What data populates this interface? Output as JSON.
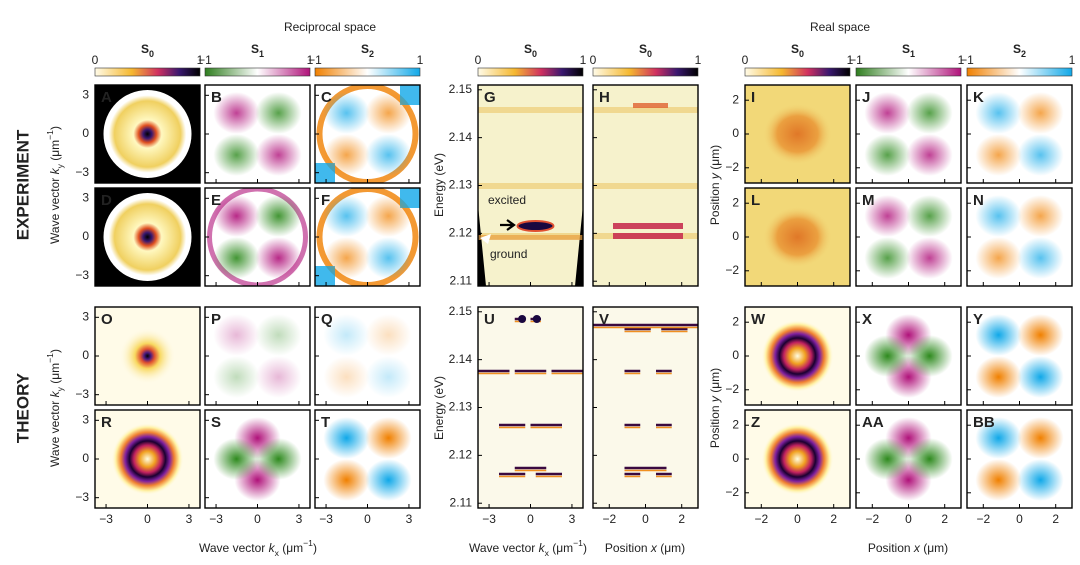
{
  "headers": {
    "reciprocal": "Reciprocal space",
    "real": "Real space"
  },
  "row_labels": {
    "experiment": "EXPERIMENT",
    "theory": "THEORY"
  },
  "colorbars": [
    {
      "var": "S",
      "sub": "0",
      "ticks": [
        0,
        1
      ]
    },
    {
      "var": "S",
      "sub": "1",
      "ticks": [
        {
          "value": -1,
          "label": "−1"
        },
        1
      ]
    },
    {
      "var": "S",
      "sub": "2",
      "ticks": [
        {
          "value": -1,
          "label": "−1"
        },
        1
      ]
    },
    {
      "var": "S",
      "sub": "0",
      "ticks": [
        0,
        1
      ]
    },
    {
      "var": "S",
      "sub": "0",
      "ticks": [
        0,
        1
      ]
    },
    {
      "var": "S",
      "sub": "0",
      "ticks": [
        0,
        1
      ]
    },
    {
      "var": "S",
      "sub": "1",
      "ticks": [
        {
          "value": -1,
          "label": "−1"
        },
        1
      ]
    },
    {
      "var": "S",
      "sub": "2",
      "ticks": [
        {
          "value": -1,
          "label": "−1"
        },
        1
      ]
    }
  ],
  "panel_labels": [
    "A",
    "B",
    "C",
    "D",
    "E",
    "F",
    "G",
    "H",
    "I",
    "J",
    "K",
    "L",
    "M",
    "N",
    "O",
    "P",
    "Q",
    "R",
    "S",
    "T",
    "U",
    "V",
    "W",
    "X",
    "Y",
    "Z",
    "AA",
    "BB"
  ],
  "axes": {
    "wavevector": {
      "lim": [
        -3.8,
        3.8
      ],
      "ticks": [
        {
          "value": -3,
          "label": "−3"
        },
        0,
        3
      ]
    },
    "energy": {
      "lim": [
        2.109,
        2.151
      ],
      "ticks": [
        2.11,
        2.12,
        2.13,
        2.14,
        2.15
      ]
    },
    "position": {
      "lim": [
        -2.9,
        2.9
      ],
      "ticks": [
        {
          "value": -2,
          "label": "−2"
        },
        0,
        2
      ]
    }
  },
  "axis_labels": {
    "ky": {
      "text": "Wave vector ",
      "var": "k",
      "sub": "y",
      "unit": " (μm",
      "sup": "−1",
      "close": ")"
    },
    "kx": {
      "text": "Wave vector ",
      "var": "k",
      "sub": "x",
      "unit": " (μm",
      "sup": "−1",
      "close": ")"
    },
    "energy": "Energy (eV)",
    "py": {
      "text": "Position ",
      "var": "y",
      "unit": " (μm)"
    },
    "px": {
      "text": "Position ",
      "var": "x",
      "unit": " (μm)"
    }
  },
  "annotations": {
    "excited": "excited",
    "ground": "ground"
  }
}
